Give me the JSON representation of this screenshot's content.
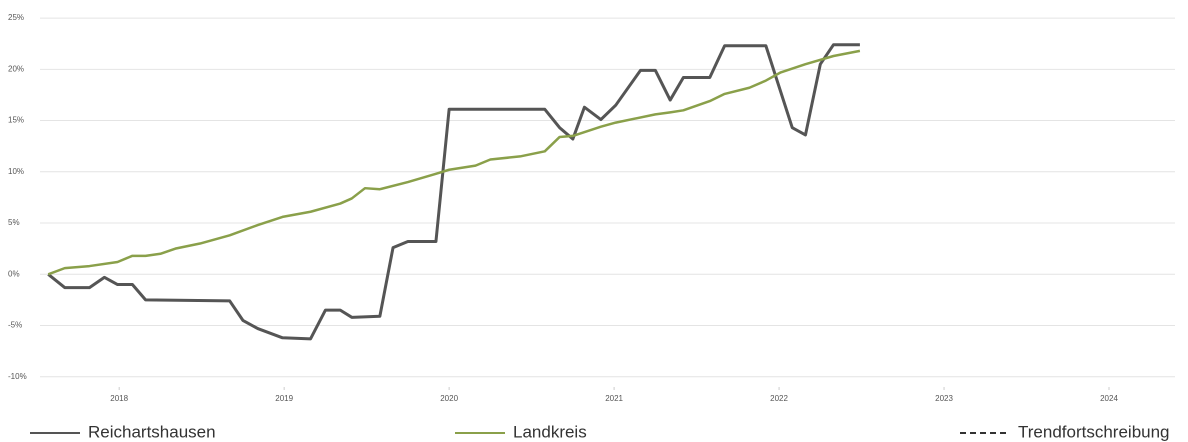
{
  "chart_data": {
    "type": "line",
    "xlim": [
      2017.52,
      2024.4
    ],
    "xticks": [
      2018,
      2019,
      2020,
      2021,
      2022,
      2023,
      2024
    ],
    "ylim": [
      -11,
      25.3
    ],
    "yticks": [
      {
        "value": -10,
        "label": "-10%"
      },
      {
        "value": -5,
        "label": "-5%"
      },
      {
        "value": 0,
        "label": "0%"
      },
      {
        "value": 5,
        "label": "5%"
      },
      {
        "value": 10,
        "label": "10%"
      },
      {
        "value": 15,
        "label": "15%"
      },
      {
        "value": 20,
        "label": "20%"
      },
      {
        "value": 25,
        "label": "25%"
      }
    ],
    "grid": true,
    "legend": "bottom",
    "series": [
      {
        "name": "Reichartshausen",
        "color": "#555555",
        "x": [
          2017.57,
          2017.67,
          2017.82,
          2017.91,
          2017.99,
          2018.08,
          2018.16,
          2018.67,
          2018.75,
          2018.84,
          2018.99,
          2019.16,
          2019.25,
          2019.34,
          2019.41,
          2019.58,
          2019.66,
          2019.75,
          2019.92,
          2020.0,
          2020.58,
          2020.67,
          2020.75,
          2020.82,
          2020.92,
          2021.01,
          2021.16,
          2021.25,
          2021.34,
          2021.42,
          2021.58,
          2021.67,
          2021.92,
          2022.08,
          2022.16,
          2022.25,
          2022.33,
          2022.49
        ],
        "values": [
          0,
          -1.3,
          -1.3,
          -0.3,
          -1,
          -1,
          -2.5,
          -2.6,
          -4.5,
          -5.3,
          -6.2,
          -6.3,
          -3.5,
          -3.5,
          -4.2,
          -4.1,
          2.6,
          3.2,
          3.2,
          16.1,
          16.1,
          14.3,
          13.2,
          16.3,
          15.1,
          16.5,
          19.9,
          19.9,
          17,
          19.2,
          19.2,
          22.3,
          22.3,
          14.3,
          13.6,
          20.5,
          22.4,
          22.4
        ]
      },
      {
        "name": "Landkreis",
        "color": "#8aa04a",
        "x": [
          2017.57,
          2017.67,
          2017.82,
          2017.99,
          2018.08,
          2018.16,
          2018.25,
          2018.34,
          2018.49,
          2018.67,
          2018.84,
          2018.99,
          2019.16,
          2019.34,
          2019.41,
          2019.49,
          2019.58,
          2019.75,
          2019.92,
          2020.0,
          2020.16,
          2020.25,
          2020.43,
          2020.58,
          2020.67,
          2020.75,
          2020.92,
          2021.01,
          2021.25,
          2021.34,
          2021.42,
          2021.58,
          2021.67,
          2021.82,
          2021.92,
          2022.01,
          2022.16,
          2022.33,
          2022.49
        ],
        "values": [
          0,
          0.6,
          0.8,
          1.2,
          1.8,
          1.8,
          2.0,
          2.5,
          3.0,
          3.8,
          4.8,
          5.6,
          6.1,
          6.9,
          7.4,
          8.4,
          8.3,
          9.0,
          9.8,
          10.2,
          10.6,
          11.2,
          11.5,
          12.0,
          13.4,
          13.5,
          14.4,
          14.8,
          15.6,
          15.8,
          16.0,
          16.9,
          17.6,
          18.2,
          18.9,
          19.7,
          20.5,
          21.3,
          21.8
        ]
      },
      {
        "name": "Trendfortschreibung",
        "color": "#333333",
        "dashed": true,
        "x": [],
        "values": []
      }
    ]
  }
}
